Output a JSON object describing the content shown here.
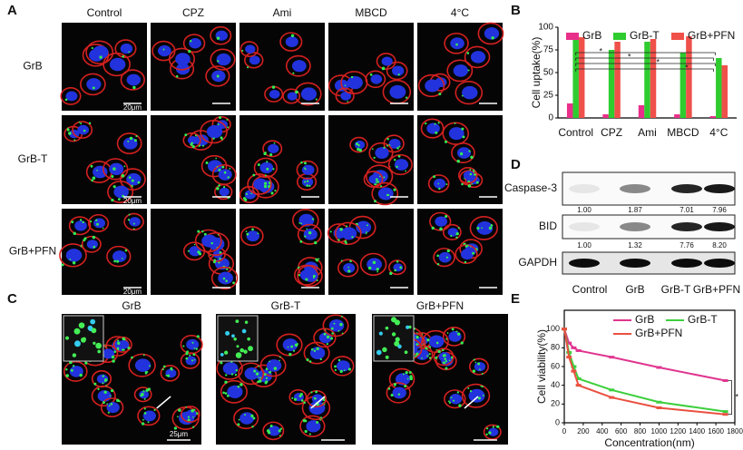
{
  "panel_labels": [
    "A",
    "B",
    "C",
    "D",
    "E"
  ],
  "panel_a": {
    "columns": [
      "Control",
      "CPZ",
      "Ami",
      "MBCD",
      "4°C"
    ],
    "rows": [
      "GrB",
      "GrB-T",
      "GrB+PFN"
    ],
    "scale_bar": "20μm"
  },
  "panel_c": {
    "columns": [
      "GrB",
      "GrB-T",
      "GrB+PFN"
    ],
    "scale_bar": "25μm"
  },
  "panel_d": {
    "blots": [
      "Caspase-3",
      "BID",
      "GAPDH"
    ],
    "quantification": [
      [
        "1.00",
        "1.87",
        "7.01",
        "7.96"
      ],
      [
        "1.00",
        "1.32",
        "7.76",
        "8.20"
      ]
    ],
    "lanes": [
      "Control",
      "GrB",
      "GrB-T",
      "GrB+PFN"
    ]
  },
  "chart_data": [
    {
      "type": "bar",
      "ylabel": "Cell uptake(%)",
      "categories": [
        "Control",
        "CPZ",
        "Ami",
        "MBCD",
        "4°C"
      ],
      "series": [
        {
          "name": "GrB",
          "color": "#e8308a",
          "values": [
            16,
            4,
            14,
            4,
            2
          ]
        },
        {
          "name": "GrB-T",
          "color": "#2fcc2f",
          "values": [
            86,
            75,
            84,
            72,
            66
          ]
        },
        {
          "name": "GrB+PFN",
          "color": "#f0504a",
          "values": [
            89,
            84,
            87,
            90,
            58
          ]
        }
      ],
      "ylim": [
        0,
        100
      ],
      "yticks": [
        0,
        25,
        50,
        75,
        100
      ],
      "annotations": [
        "*",
        "*",
        "*",
        "*"
      ]
    },
    {
      "type": "line",
      "ylabel": "Cell viability(%)",
      "xlabel": "Concentration(nm)",
      "x": [
        0,
        50,
        100,
        150,
        500,
        1000,
        1700
      ],
      "series": [
        {
          "name": "GrB",
          "color": "#e0358f",
          "values": [
            100,
            85,
            80,
            77,
            70,
            59,
            45
          ]
        },
        {
          "name": "GrB-T",
          "color": "#3ccf3c",
          "values": [
            100,
            75,
            60,
            47,
            35,
            22,
            12
          ]
        },
        {
          "name": "GrB+PFN",
          "color": "#ea5040",
          "values": [
            100,
            70,
            55,
            40,
            27,
            16,
            9
          ]
        }
      ],
      "xlim": [
        0,
        1800
      ],
      "xticks": [
        0,
        200,
        400,
        600,
        800,
        1000,
        1200,
        1400,
        1600,
        1800
      ],
      "ylim": [
        0,
        120
      ],
      "yticks": [
        0,
        20,
        40,
        60,
        80,
        100
      ],
      "annotations": [
        "*"
      ]
    }
  ]
}
